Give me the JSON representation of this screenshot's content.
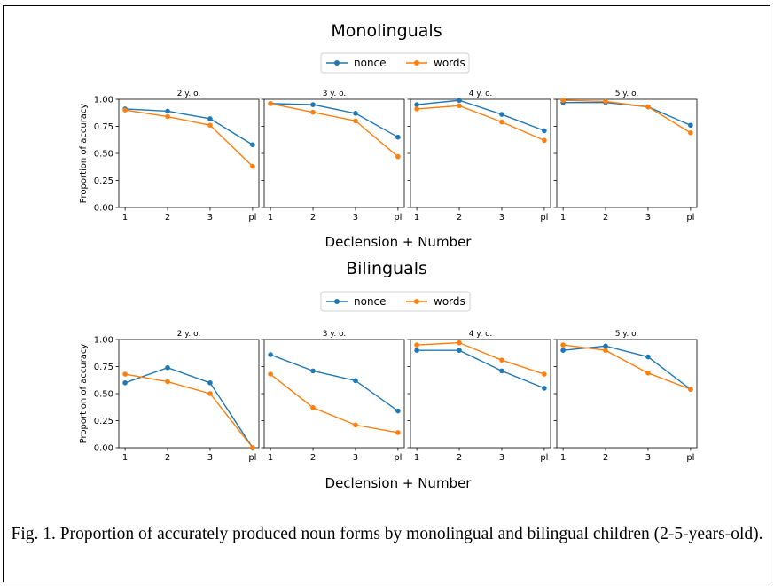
{
  "figure": {
    "caption": "Fig. 1.  Proportion of accurately produced noun forms by monolingual and bilingual children (2-5-years-old).",
    "xlabel": "Declension + Number",
    "ylabel": "Proportion of accuracy",
    "colors": {
      "nonce": "#1f77b4",
      "words": "#ff7f0e"
    }
  },
  "chart_data": [
    {
      "type": "line",
      "title": "Monolinguals",
      "legend": [
        "nonce",
        "words"
      ],
      "legend_position": "top-center",
      "xlabel": "Declension + Number",
      "ylabel": "Proportion of accuracy",
      "ylim": [
        0,
        1
      ],
      "yticks": [
        "0.00",
        "0.25",
        "0.50",
        "0.75",
        "1.00"
      ],
      "grid": false,
      "panels": [
        {
          "title": "2 y. o.",
          "categories": [
            "1",
            "2",
            "3",
            "pl"
          ],
          "series": [
            {
              "name": "nonce",
              "values": [
                0.91,
                0.89,
                0.82,
                0.58
              ]
            },
            {
              "name": "words",
              "values": [
                0.9,
                0.84,
                0.76,
                0.38
              ]
            }
          ]
        },
        {
          "title": "3 y. o.",
          "categories": [
            "1",
            "2",
            "3",
            "pl"
          ],
          "series": [
            {
              "name": "nonce",
              "values": [
                0.96,
                0.95,
                0.87,
                0.65
              ]
            },
            {
              "name": "words",
              "values": [
                0.96,
                0.88,
                0.8,
                0.47
              ]
            }
          ]
        },
        {
          "title": "4 y. o.",
          "categories": [
            "1",
            "2",
            "3",
            "pl"
          ],
          "series": [
            {
              "name": "nonce",
              "values": [
                0.95,
                0.99,
                0.86,
                0.71
              ]
            },
            {
              "name": "words",
              "values": [
                0.91,
                0.94,
                0.79,
                0.62
              ]
            }
          ]
        },
        {
          "title": "5 y. o.",
          "categories": [
            "1",
            "2",
            "3",
            "pl"
          ],
          "series": [
            {
              "name": "nonce",
              "values": [
                0.97,
                0.97,
                0.93,
                0.76
              ]
            },
            {
              "name": "words",
              "values": [
                0.99,
                0.98,
                0.93,
                0.69
              ]
            }
          ]
        }
      ]
    },
    {
      "type": "line",
      "title": "Bilinguals",
      "legend": [
        "nonce",
        "words"
      ],
      "legend_position": "top-center",
      "xlabel": "Declension + Number",
      "ylabel": "Proportion of accuracy",
      "ylim": [
        0,
        1
      ],
      "yticks": [
        "0.00",
        "0.25",
        "0.50",
        "0.75",
        "1.00"
      ],
      "grid": false,
      "panels": [
        {
          "title": "2 y. o.",
          "categories": [
            "1",
            "2",
            "3",
            "pl"
          ],
          "series": [
            {
              "name": "nonce",
              "values": [
                0.6,
                0.74,
                0.6,
                0.0
              ]
            },
            {
              "name": "words",
              "values": [
                0.68,
                0.61,
                0.5,
                0.0
              ]
            }
          ]
        },
        {
          "title": "3 y. o.",
          "categories": [
            "1",
            "2",
            "3",
            "pl"
          ],
          "series": [
            {
              "name": "nonce",
              "values": [
                0.86,
                0.71,
                0.62,
                0.34
              ]
            },
            {
              "name": "words",
              "values": [
                0.68,
                0.37,
                0.21,
                0.14
              ]
            }
          ]
        },
        {
          "title": "4 y. o.",
          "categories": [
            "1",
            "2",
            "3",
            "pl"
          ],
          "series": [
            {
              "name": "nonce",
              "values": [
                0.9,
                0.9,
                0.71,
                0.55
              ]
            },
            {
              "name": "words",
              "values": [
                0.95,
                0.97,
                0.81,
                0.68
              ]
            }
          ]
        },
        {
          "title": "5 y. o.",
          "categories": [
            "1",
            "2",
            "3",
            "pl"
          ],
          "series": [
            {
              "name": "nonce",
              "values": [
                0.9,
                0.94,
                0.84,
                0.54
              ]
            },
            {
              "name": "words",
              "values": [
                0.95,
                0.9,
                0.69,
                0.54
              ]
            }
          ]
        }
      ]
    }
  ]
}
